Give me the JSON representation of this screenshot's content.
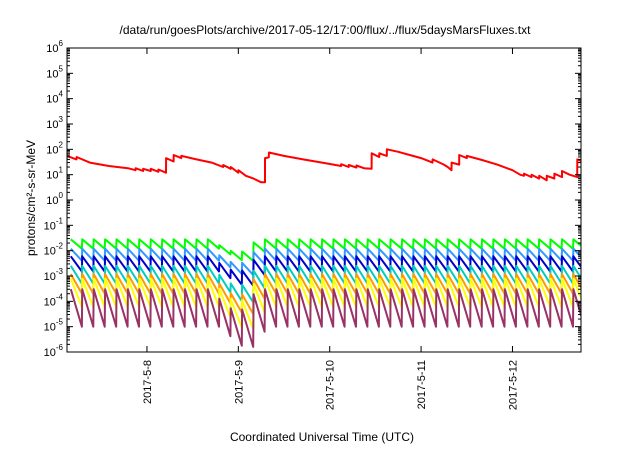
{
  "chart_data": {
    "type": "line",
    "title": "/data/run/goesPlots/archive/2017-05-12/17:00/flux/../flux/5daysMarsFluxes.txt",
    "xlabel": "Coordinated Universal Time (UTC)",
    "ylabel": "protons/cm²-s-sr-MeV",
    "yscale": "log",
    "ylim": [
      1e-06,
      1000000
    ],
    "xlim": [
      "2017-05-07 03:00",
      "2017-05-12 18:00"
    ],
    "grid": false,
    "legend": "none",
    "x_ticks": [
      {
        "label": "2017-5-8",
        "x": "2017-05-08 00:00"
      },
      {
        "label": "2017-5-9",
        "x": "2017-05-09 00:00"
      },
      {
        "label": "2017-5-10",
        "x": "2017-05-10 00:00"
      },
      {
        "label": "2017-5-11",
        "x": "2017-05-11 00:00"
      },
      {
        "label": "2017-5-12",
        "x": "2017-05-12 00:00"
      }
    ],
    "y_ticks": [
      {
        "base": "10",
        "exp": "-6",
        "value": 1e-06
      },
      {
        "base": "10",
        "exp": "-5",
        "value": 1e-05
      },
      {
        "base": "10",
        "exp": "-4",
        "value": 0.0001
      },
      {
        "base": "10",
        "exp": "-3",
        "value": 0.001
      },
      {
        "base": "10",
        "exp": "-2",
        "value": 0.01
      },
      {
        "base": "10",
        "exp": "-1",
        "value": 0.1
      },
      {
        "base": "10",
        "exp": "0",
        "value": 1
      },
      {
        "base": "10",
        "exp": "1",
        "value": 10
      },
      {
        "base": "10",
        "exp": "2",
        "value": 100
      },
      {
        "base": "10",
        "exp": "3",
        "value": 1000
      },
      {
        "base": "10",
        "exp": "4",
        "value": 10000
      },
      {
        "base": "10",
        "exp": "5",
        "value": 100000
      },
      {
        "base": "10",
        "exp": "6",
        "value": 1000000
      }
    ],
    "series": [
      {
        "color": "#ff0000",
        "points": [
          [
            "2017-05-07 03:00",
            55
          ],
          [
            "2017-05-07 05:30",
            40
          ],
          [
            "2017-05-07 05:31",
            50
          ],
          [
            "2017-05-07 09:00",
            30
          ],
          [
            "2017-05-07 14:00",
            22
          ],
          [
            "2017-05-07 19:00",
            18
          ],
          [
            "2017-05-07 21:00",
            15
          ],
          [
            "2017-05-07 21:01",
            18
          ],
          [
            "2017-05-07 23:00",
            14
          ],
          [
            "2017-05-07 23:01",
            17
          ],
          [
            "2017-05-08 01:00",
            14
          ],
          [
            "2017-05-08 01:01",
            17
          ],
          [
            "2017-05-08 03:00",
            13
          ],
          [
            "2017-05-08 03:01",
            16
          ],
          [
            "2017-05-08 05:00",
            12
          ],
          [
            "2017-05-08 05:01",
            45
          ],
          [
            "2017-05-08 07:00",
            33
          ],
          [
            "2017-05-08 07:01",
            60
          ],
          [
            "2017-05-08 09:00",
            45
          ],
          [
            "2017-05-08 09:01",
            55
          ],
          [
            "2017-05-08 13:00",
            40
          ],
          [
            "2017-05-08 17:00",
            30
          ],
          [
            "2017-05-08 20:00",
            20
          ],
          [
            "2017-05-08 20:01",
            24
          ],
          [
            "2017-05-08 22:00",
            17
          ],
          [
            "2017-05-08 22:01",
            20
          ],
          [
            "2017-05-09 00:00",
            12
          ],
          [
            "2017-05-09 00:01",
            15
          ],
          [
            "2017-05-09 02:00",
            9
          ],
          [
            "2017-05-09 04:00",
            7
          ],
          [
            "2017-05-09 06:00",
            5
          ],
          [
            "2017-05-09 07:00",
            5
          ],
          [
            "2017-05-09 07:01",
            45
          ],
          [
            "2017-05-09 08:00",
            48
          ],
          [
            "2017-05-09 08:01",
            75
          ],
          [
            "2017-05-09 12:00",
            55
          ],
          [
            "2017-05-09 17:00",
            40
          ],
          [
            "2017-05-09 22:00",
            30
          ],
          [
            "2017-05-10 01:00",
            25
          ],
          [
            "2017-05-10 03:00",
            22
          ],
          [
            "2017-05-10 03:01",
            26
          ],
          [
            "2017-05-10 05:00",
            20
          ],
          [
            "2017-05-10 05:01",
            24
          ],
          [
            "2017-05-10 07:00",
            19
          ],
          [
            "2017-05-10 07:01",
            23
          ],
          [
            "2017-05-10 09:00",
            18
          ],
          [
            "2017-05-10 11:00",
            17
          ],
          [
            "2017-05-10 11:01",
            70
          ],
          [
            "2017-05-10 13:00",
            50
          ],
          [
            "2017-05-10 13:01",
            70
          ],
          [
            "2017-05-10 15:00",
            55
          ],
          [
            "2017-05-10 15:01",
            100
          ],
          [
            "2017-05-10 18:00",
            80
          ],
          [
            "2017-05-10 21:00",
            60
          ],
          [
            "2017-05-11 00:00",
            45
          ],
          [
            "2017-05-11 03:00",
            30
          ],
          [
            "2017-05-11 03:01",
            40
          ],
          [
            "2017-05-11 06:00",
            25
          ],
          [
            "2017-05-11 07:00",
            20
          ],
          [
            "2017-05-11 08:00",
            15
          ],
          [
            "2017-05-11 08:01",
            30
          ],
          [
            "2017-05-11 10:00",
            25
          ],
          [
            "2017-05-11 10:01",
            60
          ],
          [
            "2017-05-11 12:00",
            45
          ],
          [
            "2017-05-11 12:01",
            55
          ],
          [
            "2017-05-11 16:00",
            38
          ],
          [
            "2017-05-11 20:00",
            25
          ],
          [
            "2017-05-12 00:00",
            15
          ],
          [
            "2017-05-12 02:00",
            10
          ],
          [
            "2017-05-12 03:00",
            9
          ],
          [
            "2017-05-12 03:01",
            11
          ],
          [
            "2017-05-12 05:00",
            8
          ],
          [
            "2017-05-12 05:01",
            10
          ],
          [
            "2017-05-12 07:00",
            7
          ],
          [
            "2017-05-12 07:01",
            9
          ],
          [
            "2017-05-12 09:00",
            6
          ],
          [
            "2017-05-12 09:01",
            9
          ],
          [
            "2017-05-12 11:00",
            7
          ],
          [
            "2017-05-12 11:01",
            11
          ],
          [
            "2017-05-12 13:00",
            8
          ],
          [
            "2017-05-12 13:01",
            14
          ],
          [
            "2017-05-12 15:00",
            10
          ],
          [
            "2017-05-12 17:00",
            8
          ],
          [
            "2017-05-12 17:01",
            40
          ],
          [
            "2017-05-12 18:00",
            35
          ]
        ]
      }
    ],
    "sawtooth_series": [
      {
        "color": "#00ff00",
        "top": 0.028,
        "bottom": 0.012,
        "dip_min": 0.003
      },
      {
        "color": "#3399ff",
        "top": 0.012,
        "bottom": 0.004,
        "dip_min": 0.0008
      },
      {
        "color": "#0000cc",
        "top": 0.006,
        "bottom": 0.0015,
        "dip_min": 0.0003
      },
      {
        "color": "#00ccc0",
        "top": 0.0025,
        "bottom": 0.0005,
        "dip_min": 6e-05
      },
      {
        "color": "#ff9900",
        "top": 0.0012,
        "bottom": 0.0002,
        "dip_min": 2e-05
      },
      {
        "color": "#ffff00",
        "top": 0.0008,
        "bottom": 6e-05,
        "dip_min": 5e-06
      },
      {
        "color": "#993366",
        "top": 0.0003,
        "bottom": 1e-05,
        "dip_min": 1e-06
      }
    ]
  }
}
